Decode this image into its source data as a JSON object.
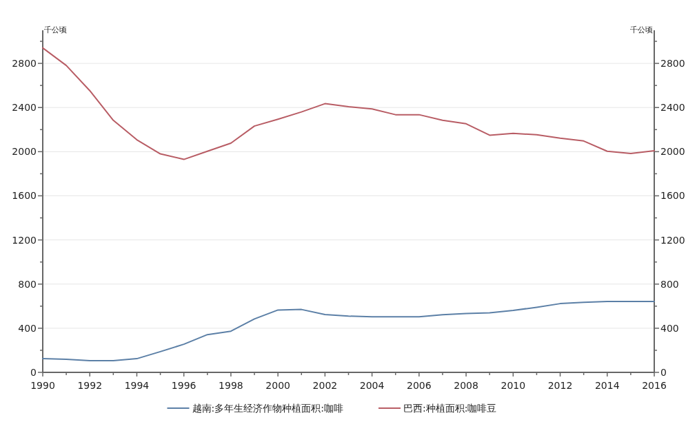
{
  "chart_data": {
    "type": "line",
    "ylabel": "千公顷",
    "y2label": "千公顷",
    "x": [
      1990,
      1991,
      1992,
      1993,
      1994,
      1995,
      1996,
      1997,
      1998,
      1999,
      2000,
      2001,
      2002,
      2003,
      2004,
      2005,
      2006,
      2007,
      2008,
      2009,
      2010,
      2011,
      2012,
      2013,
      2014,
      2015,
      2016
    ],
    "xlim": [
      1990,
      2016
    ],
    "xticks": [
      1990,
      {
        "value": 1991,
        "label": null
      },
      1992,
      {
        "value": 1993,
        "label": null
      },
      1994,
      {
        "value": 1995,
        "label": null
      },
      1996,
      {
        "value": 1997,
        "label": null
      },
      1998,
      {
        "value": 1999,
        "label": null
      },
      2000,
      {
        "value": 2001,
        "label": null
      },
      2002,
      {
        "value": 2003,
        "label": null
      },
      2004,
      {
        "value": 2005,
        "label": null
      },
      2006,
      {
        "value": 2007,
        "label": null
      },
      2008,
      {
        "value": 2009,
        "label": null
      },
      2010,
      {
        "value": 2011,
        "label": null
      },
      2012,
      {
        "value": 2013,
        "label": null
      },
      2014,
      {
        "value": 2015,
        "label": null
      },
      2016
    ],
    "ylim": [
      0,
      3100
    ],
    "yticks": [
      0,
      {
        "value": 200,
        "label": null
      },
      400,
      {
        "value": 600,
        "label": null
      },
      800,
      {
        "value": 1000,
        "label": null
      },
      1200,
      {
        "value": 1400,
        "label": null
      },
      1600,
      {
        "value": 1800,
        "label": null
      },
      2000,
      {
        "value": 2200,
        "label": null
      },
      2400,
      {
        "value": 2600,
        "label": null
      },
      2800,
      {
        "value": 3000,
        "label": null
      }
    ],
    "y2lim": [
      0,
      3100
    ],
    "y2ticks": [
      0,
      {
        "value": 200,
        "label": null
      },
      400,
      {
        "value": 600,
        "label": null
      },
      800,
      {
        "value": 1000,
        "label": null
      },
      1200,
      {
        "value": 1400,
        "label": null
      },
      1600,
      {
        "value": 1800,
        "label": null
      },
      2000,
      {
        "value": 2200,
        "label": null
      },
      2400,
      {
        "value": 2600,
        "label": null
      },
      2800,
      {
        "value": 3000,
        "label": null
      }
    ],
    "grid": "y",
    "legend": "bottom",
    "marker": "none",
    "line_style": "solid",
    "series": [
      {
        "name": "越南:多年生经济作物种植面积:咖啡",
        "color": "#5b7fa6",
        "values": [
          124,
          118,
          106,
          106,
          124,
          188,
          255,
          342,
          373,
          484,
          565,
          570,
          524,
          510,
          503,
          503,
          503,
          522,
          534,
          540,
          561,
          590,
          623,
          635,
          642,
          642,
          642
        ]
      },
      {
        "name": "巴西:种植面积:咖啡豆",
        "color": "#b85c64",
        "values": [
          2940,
          2781,
          2553,
          2284,
          2108,
          1980,
          1930,
          2004,
          2077,
          2232,
          2294,
          2360,
          2435,
          2408,
          2387,
          2335,
          2335,
          2284,
          2253,
          2149,
          2166,
          2153,
          2122,
          2097,
          2004,
          1983,
          2008
        ]
      }
    ]
  }
}
